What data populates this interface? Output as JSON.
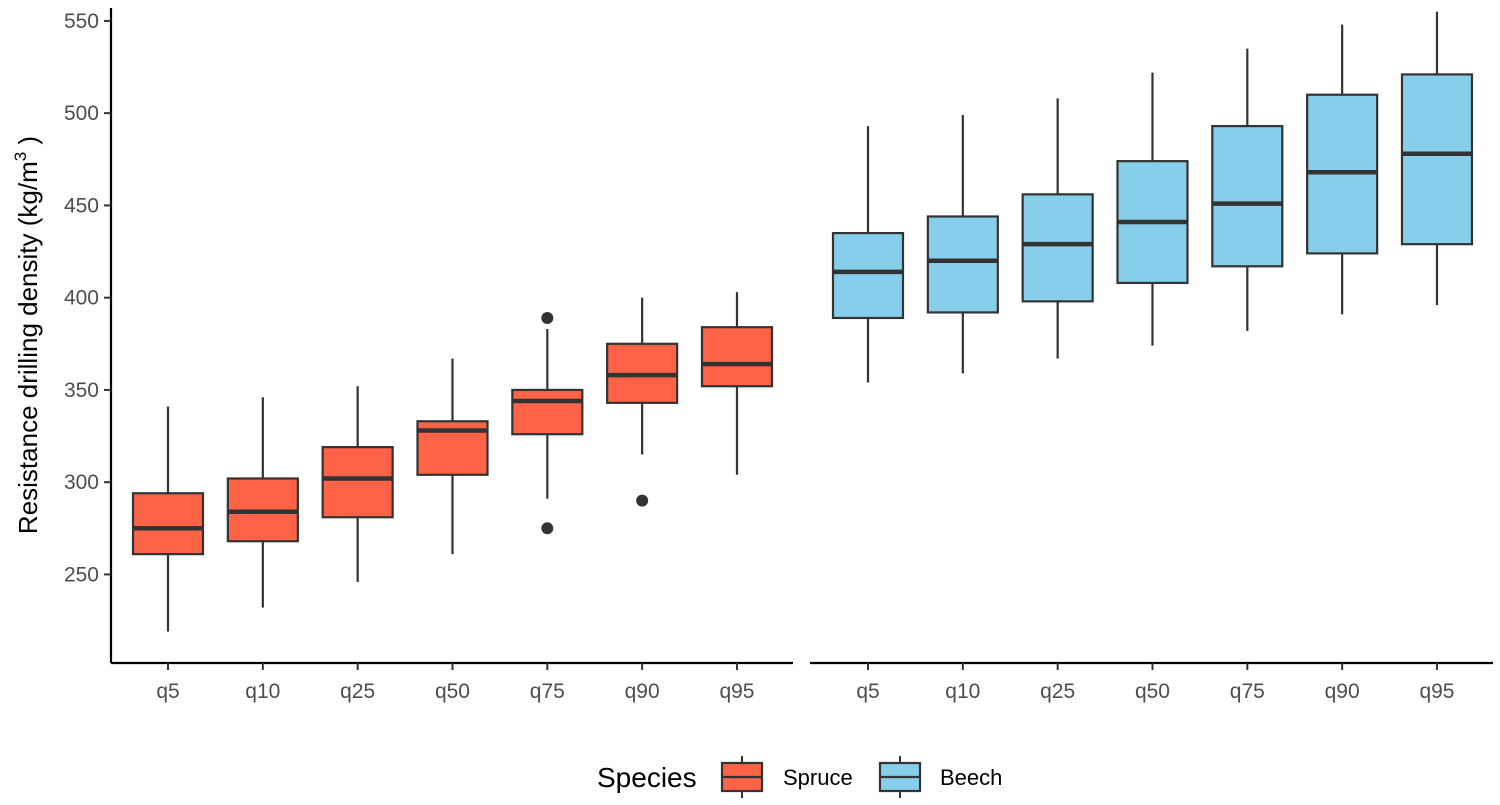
{
  "chart_data": {
    "type": "boxplot",
    "ylabel_main": "Resistance drilling density (kg/m",
    "ylabel_sup": "3",
    "ylabel_end": " )",
    "xlabel": "",
    "ylim": [
      202,
      557
    ],
    "yticks": [
      250,
      300,
      350,
      400,
      450,
      500,
      550
    ],
    "categories": [
      "q5",
      "q10",
      "q25",
      "q50",
      "q75",
      "q90",
      "q95"
    ],
    "legend": {
      "title": "Species",
      "position": "bottom",
      "entries": [
        {
          "label": "Spruce",
          "color": "#FF6347"
        },
        {
          "label": "Beech",
          "color": "#87CEEB"
        }
      ]
    },
    "series": [
      {
        "name": "Spruce",
        "color": "#FF6347",
        "boxes": [
          {
            "q": "q5",
            "min": 219,
            "q1": 261,
            "median": 275,
            "q3": 294,
            "max": 341,
            "outliers": []
          },
          {
            "q": "q10",
            "min": 232,
            "q1": 268,
            "median": 284,
            "q3": 302,
            "max": 346,
            "outliers": []
          },
          {
            "q": "q25",
            "min": 246,
            "q1": 281,
            "median": 302,
            "q3": 319,
            "max": 352,
            "outliers": []
          },
          {
            "q": "q50",
            "min": 261,
            "q1": 304,
            "median": 328,
            "q3": 333,
            "max": 367,
            "outliers": []
          },
          {
            "q": "q75",
            "min": 291,
            "q1": 326,
            "median": 344,
            "q3": 350,
            "max": 383,
            "outliers": [
              389,
              275
            ]
          },
          {
            "q": "q90",
            "min": 315,
            "q1": 343,
            "median": 358,
            "q3": 375,
            "max": 400,
            "outliers": [
              290
            ]
          },
          {
            "q": "q95",
            "min": 304,
            "q1": 352,
            "median": 364,
            "q3": 384,
            "max": 403,
            "outliers": []
          }
        ]
      },
      {
        "name": "Beech",
        "color": "#87CEEB",
        "boxes": [
          {
            "q": "q5",
            "min": 354,
            "q1": 389,
            "median": 414,
            "q3": 435,
            "max": 493,
            "outliers": []
          },
          {
            "q": "q10",
            "min": 359,
            "q1": 392,
            "median": 420,
            "q3": 444,
            "max": 499,
            "outliers": []
          },
          {
            "q": "q25",
            "min": 367,
            "q1": 398,
            "median": 429,
            "q3": 456,
            "max": 508,
            "outliers": []
          },
          {
            "q": "q50",
            "min": 374,
            "q1": 408,
            "median": 441,
            "q3": 474,
            "max": 522,
            "outliers": []
          },
          {
            "q": "q75",
            "min": 382,
            "q1": 417,
            "median": 451,
            "q3": 493,
            "max": 535,
            "outliers": []
          },
          {
            "q": "q90",
            "min": 391,
            "q1": 424,
            "median": 468,
            "q3": 510,
            "max": 548,
            "outliers": []
          },
          {
            "q": "q95",
            "min": 396,
            "q1": 429,
            "median": 478,
            "q3": 521,
            "max": 555,
            "outliers": []
          }
        ]
      }
    ]
  }
}
